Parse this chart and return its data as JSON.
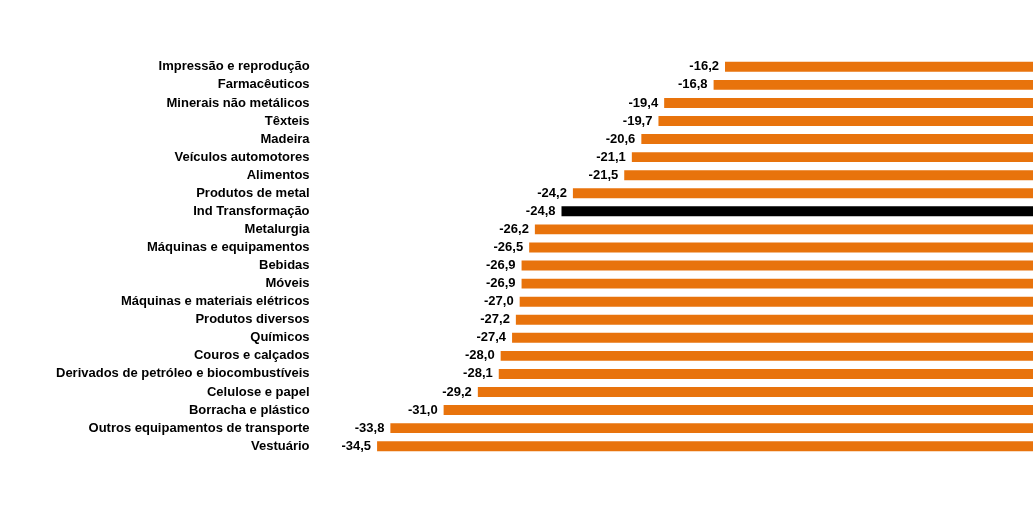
{
  "chart_data": {
    "type": "bar",
    "orientation": "horizontal",
    "categories": [
      "Impressão e reprodução",
      "Farmacêuticos",
      "Minerais não metálicos",
      "Têxteis",
      "Madeira",
      "Veículos automotores",
      "Alimentos",
      "Produtos de metal",
      "Ind Transformação",
      "Metalurgia",
      "Máquinas e equipamentos",
      "Bebidas",
      "Móveis",
      "Máquinas e materiais elétricos",
      "Produtos diversos",
      "Químicos",
      "Couros e calçados",
      "Derivados de petróleo e biocombustíveis",
      "Celulose e papel",
      "Borracha e plástico",
      "Outros equipamentos de transporte",
      "Vestuário"
    ],
    "values": [
      -16.2,
      -16.8,
      -19.4,
      -19.7,
      -20.6,
      -21.1,
      -21.5,
      -24.2,
      -24.8,
      -26.2,
      -26.5,
      -26.9,
      -26.9,
      -27.0,
      -27.2,
      -27.4,
      -28.0,
      -28.1,
      -29.2,
      -31.0,
      -33.8,
      -34.5
    ],
    "value_labels": [
      "-16,2",
      "-16,8",
      "-19,4",
      "-19,7",
      "-20,6",
      "-21,1",
      "-21,5",
      "-24,2",
      "-24,8",
      "-26,2",
      "-26,5",
      "-26,9",
      "-26,9",
      "-27,0",
      "-27,2",
      "-27,4",
      "-28,0",
      "-28,1",
      "-29,2",
      "-31,0",
      "-33,8",
      "-34,5"
    ],
    "colors": [
      "#e8730c",
      "#e8730c",
      "#e8730c",
      "#e8730c",
      "#e8730c",
      "#e8730c",
      "#e8730c",
      "#e8730c",
      "#000000",
      "#e8730c",
      "#e8730c",
      "#e8730c",
      "#e8730c",
      "#e8730c",
      "#e8730c",
      "#e8730c",
      "#e8730c",
      "#e8730c",
      "#e8730c",
      "#e8730c",
      "#e8730c",
      "#e8730c"
    ],
    "tick_labels": "y"
  }
}
